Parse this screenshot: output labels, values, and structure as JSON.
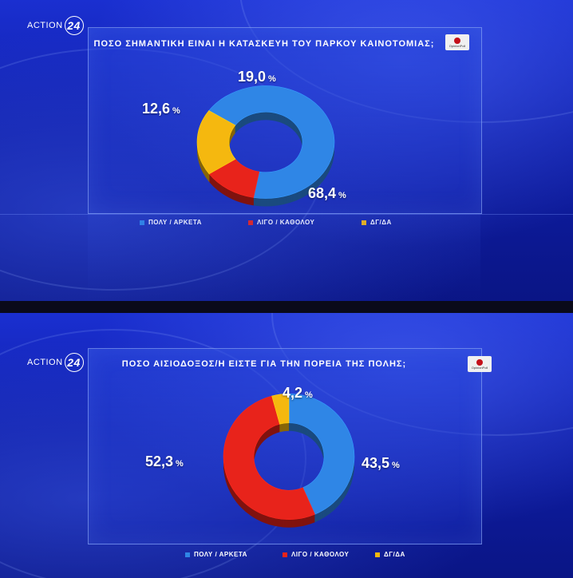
{
  "channel_logo": {
    "text": "ACTION",
    "number": "24"
  },
  "brand_logo_text": "OpinionPoll",
  "chart_data": [
    {
      "type": "pie",
      "title": "ΠΟΣΟ ΣΗΜΑΝΤΙΚΗ ΕΙΝΑΙ Η ΚΑΤΑΣΚΕΥΗ ΤΟΥ ΠΑΡΚΟΥ ΚΑΙΝΟΤΟΜΙΑΣ;",
      "categories": [
        "ΠΟΛΥ / ΑΡΚΕΤΑ",
        "ΛΙΓΟ / ΚΑΘΟΛΟΥ",
        "ΔΓ/ΔΑ"
      ],
      "values": [
        68.4,
        12.6,
        19.0
      ],
      "labels": [
        "68,4",
        "12,6",
        "19,0"
      ],
      "unit": "%",
      "colors": [
        "#2f86e6",
        "#e8231b",
        "#f5b80f"
      ],
      "legend_position": "bottom"
    },
    {
      "type": "pie",
      "title": "ΠΟΣΟ ΑΙΣΙΟΔΟΞΟΣ/Η ΕΙΣΤΕ ΓΙΑ ΤΗΝ ΠΟΡΕΙΑ ΤΗΣ ΠΟΛΗΣ;",
      "categories": [
        "ΠΟΛΥ / ΑΡΚΕΤΑ",
        "ΛΙΓΟ / ΚΑΘΟΛΟΥ",
        "ΔΓ/ΔΑ"
      ],
      "values": [
        43.5,
        52.3,
        4.2
      ],
      "labels": [
        "43,5",
        "52,3",
        "4,2"
      ],
      "unit": "%",
      "colors": [
        "#2f86e6",
        "#e8231b",
        "#f5b80f"
      ],
      "legend_position": "bottom"
    }
  ]
}
